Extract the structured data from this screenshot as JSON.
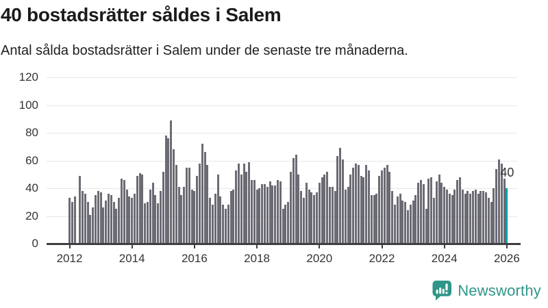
{
  "header": {
    "title": "40 bostadsrätter såldes i Salem",
    "subtitle": "Antal sålda bostadsrätter i Salem under de senaste tre månaderna."
  },
  "chart_data": {
    "type": "bar",
    "title": "40 bostadsrätter såldes i Salem",
    "xlabel": "",
    "ylabel": "",
    "x_range": [
      "2012",
      "2026"
    ],
    "ylim": [
      0,
      120
    ],
    "grid": true,
    "legend": false,
    "y_tick_labels": [
      "0",
      "20",
      "40",
      "60",
      "80",
      "100",
      "120"
    ],
    "x_tick_labels": [
      "2012",
      "2014",
      "2016",
      "2018",
      "2020",
      "2022",
      "2024",
      "2026"
    ],
    "values": [
      33,
      30,
      34,
      0,
      49,
      38,
      36,
      30,
      21,
      26,
      35,
      38,
      37,
      26,
      31,
      36,
      35,
      30,
      25,
      33,
      47,
      46,
      39,
      34,
      33,
      36,
      49,
      51,
      50,
      29,
      30,
      39,
      44,
      35,
      29,
      38,
      52,
      78,
      76,
      89,
      68,
      57,
      41,
      35,
      41,
      55,
      55,
      39,
      38,
      49,
      58,
      72,
      66,
      57,
      33,
      28,
      36,
      50,
      34,
      28,
      25,
      28,
      38,
      39,
      53,
      58,
      50,
      58,
      52,
      59,
      46,
      46,
      39,
      40,
      43,
      43,
      41,
      45,
      42,
      42,
      46,
      45,
      25,
      28,
      30,
      52,
      62,
      64,
      50,
      38,
      33,
      44,
      39,
      37,
      35,
      37,
      44,
      48,
      50,
      52,
      41,
      41,
      38,
      63,
      69,
      61,
      39,
      41,
      50,
      55,
      58,
      57,
      49,
      48,
      57,
      53,
      35,
      35,
      36,
      49,
      53,
      55,
      57,
      52,
      38,
      28,
      34,
      36,
      31,
      30,
      24,
      28,
      31,
      35,
      44,
      46,
      43,
      25,
      47,
      48,
      33,
      45,
      50,
      44,
      41,
      39,
      36,
      35,
      39,
      46,
      48,
      39,
      36,
      38,
      36,
      38,
      39,
      36,
      38,
      38,
      37,
      33,
      30,
      40,
      54,
      61,
      58,
      47,
      40
    ],
    "highlight": {
      "index": 168,
      "value": 40,
      "label": "40"
    },
    "bar_color": "#6b6b74",
    "highlight_color": "#00a0a6"
  },
  "branding": {
    "logo_text": "Newsworthy",
    "logo_color": "#2f9689"
  },
  "colors": {
    "gridline": "#e7e7e7",
    "axis": "#3e3e41",
    "axis_text": "#333333"
  }
}
